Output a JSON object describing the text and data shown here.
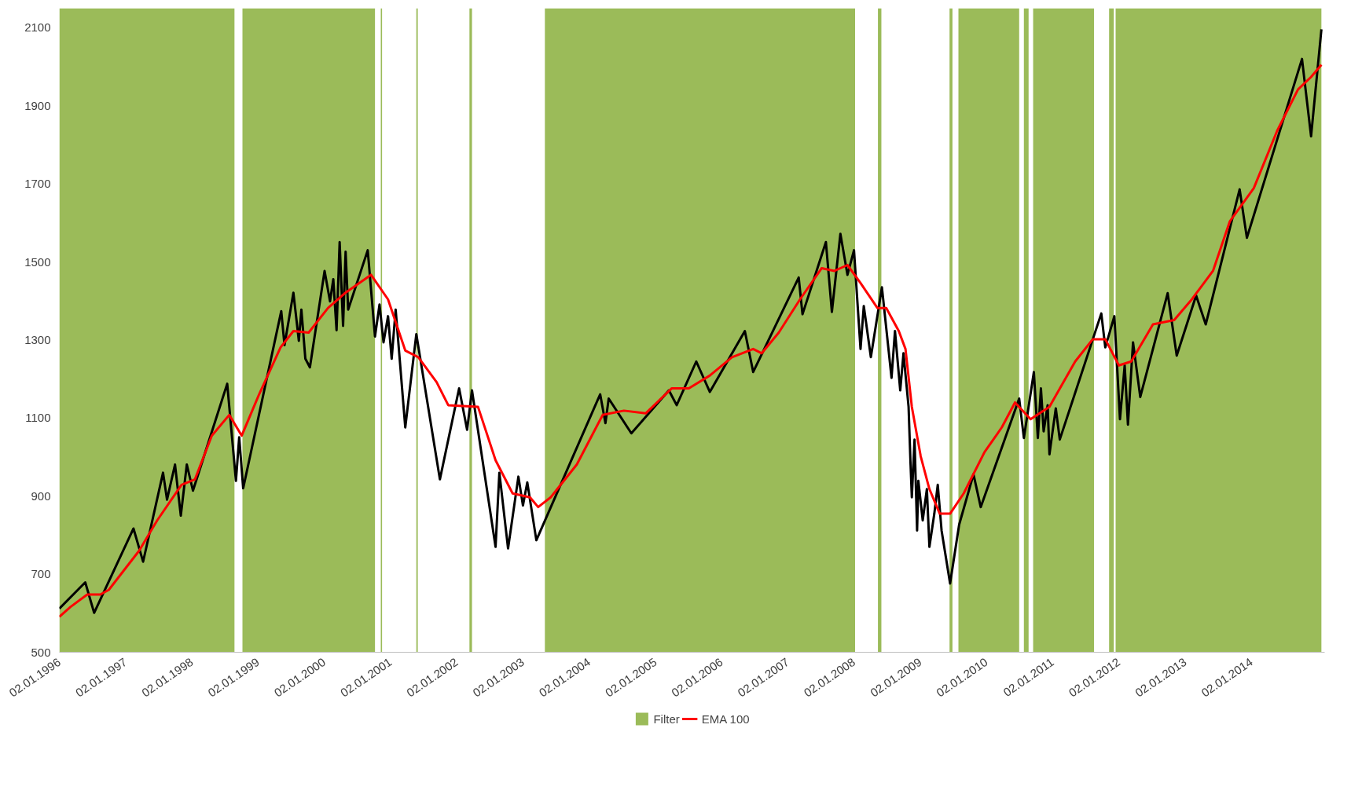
{
  "chart_data": {
    "type": "line",
    "ylim": [
      500,
      2150
    ],
    "yticks": [
      500,
      700,
      900,
      1100,
      1300,
      1500,
      1700,
      1900,
      2100
    ],
    "xlim": [
      "1996-01-02",
      "2015-02-10"
    ],
    "xticks": [
      {
        "value": "1996-01-02",
        "label": "02.01.1996"
      },
      {
        "value": "1997-01-02",
        "label": "02.01.1997"
      },
      {
        "value": "1998-01-02",
        "label": "02.01.1998"
      },
      {
        "value": "1999-01-02",
        "label": "02.01.1999"
      },
      {
        "value": "2000-01-02",
        "label": "02.01.2000"
      },
      {
        "value": "2001-01-02",
        "label": "02.01.2001"
      },
      {
        "value": "2002-01-02",
        "label": "02.01.2002"
      },
      {
        "value": "2003-01-02",
        "label": "02.01.2003"
      },
      {
        "value": "2004-01-02",
        "label": "02.01.2004"
      },
      {
        "value": "2005-01-02",
        "label": "02.01.2005"
      },
      {
        "value": "2006-01-02",
        "label": "02.01.2006"
      },
      {
        "value": "2007-01-02",
        "label": "02.01.2007"
      },
      {
        "value": "2008-01-02",
        "label": "02.01.2008"
      },
      {
        "value": "2009-01-02",
        "label": "02.01.2009"
      },
      {
        "value": "2010-01-02",
        "label": "02.01.2010"
      },
      {
        "value": "2011-01-02",
        "label": "02.01.2011"
      },
      {
        "value": "2012-01-02",
        "label": "02.01.2012"
      },
      {
        "value": "2013-01-02",
        "label": "02.01.2013"
      },
      {
        "value": "2014-01-02",
        "label": "02.01.2014"
      }
    ],
    "grid": false,
    "legend": "bottom",
    "bands": [
      {
        "axis": "x",
        "from": "1996-01-02",
        "to": "1998-08-25",
        "label": "Filter",
        "color": "#9bbb59"
      },
      {
        "axis": "x",
        "from": "1998-10-08",
        "to": "2000-10-08",
        "color": "#9bbb59"
      },
      {
        "axis": "x",
        "from": "2000-11-09",
        "to": "2000-11-16",
        "color": "#9bbb59"
      },
      {
        "axis": "x",
        "from": "2001-05-24",
        "to": "2001-06-01",
        "color": "#9bbb59"
      },
      {
        "axis": "x",
        "from": "2002-03-13",
        "to": "2002-03-27",
        "color": "#9bbb59"
      },
      {
        "axis": "x",
        "from": "2003-05-03",
        "to": "2008-01-08",
        "color": "#9bbb59"
      },
      {
        "axis": "x",
        "from": "2008-05-13",
        "to": "2008-06-01",
        "color": "#9bbb59"
      },
      {
        "axis": "x",
        "from": "2009-06-12",
        "to": "2009-06-28",
        "color": "#9bbb59"
      },
      {
        "axis": "x",
        "from": "2009-07-31",
        "to": "2010-07-01",
        "color": "#9bbb59"
      },
      {
        "axis": "x",
        "from": "2010-07-27",
        "to": "2010-08-22",
        "color": "#9bbb59"
      },
      {
        "axis": "x",
        "from": "2010-09-16",
        "to": "2011-08-18",
        "color": "#9bbb59"
      },
      {
        "axis": "x",
        "from": "2011-11-09",
        "to": "2011-12-05",
        "color": "#9bbb59"
      },
      {
        "axis": "x",
        "from": "2011-12-15",
        "to": "2015-01-23",
        "color": "#9bbb59"
      }
    ],
    "series": [
      {
        "color": "#000000",
        "x": [
          "1996-01-02",
          "1996-05-24",
          "1996-07-12",
          "1997-02-14",
          "1997-04-08",
          "1997-07-27",
          "1997-08-18",
          "1997-10-01",
          "1997-11-02",
          "1997-12-05",
          "1998-01-08",
          "1998-07-16",
          "1998-09-02",
          "1998-09-20",
          "1998-10-12",
          "1999-05-10",
          "1999-05-28",
          "1999-07-16",
          "1999-08-15",
          "1999-08-29",
          "1999-09-20",
          "1999-10-15",
          "2000-01-04",
          "2000-02-03",
          "2000-02-21",
          "2000-03-10",
          "2000-03-27",
          "2000-04-15",
          "2000-04-29",
          "2000-05-13",
          "2000-08-29",
          "2000-10-08",
          "2000-11-02",
          "2000-11-24",
          "2000-12-19",
          "2001-01-08",
          "2001-01-30",
          "2001-03-24",
          "2001-05-24",
          "2001-10-01",
          "2002-01-15",
          "2002-02-28",
          "2002-03-27",
          "2002-08-04",
          "2002-08-25",
          "2002-10-12",
          "2002-12-08",
          "2003-01-02",
          "2003-01-26",
          "2003-03-17",
          "2004-03-03",
          "2004-04-01",
          "2004-04-19",
          "2004-08-22",
          "2005-03-17",
          "2005-04-29",
          "2005-08-15",
          "2005-10-29",
          "2006-05-10",
          "2006-06-25",
          "2007-03-03",
          "2007-03-24",
          "2007-07-31",
          "2007-09-02",
          "2007-10-19",
          "2007-11-27",
          "2008-01-02",
          "2008-02-07",
          "2008-02-25",
          "2008-04-04",
          "2008-06-04",
          "2008-07-27",
          "2008-08-15",
          "2008-09-13",
          "2008-10-01",
          "2008-10-29",
          "2008-11-09",
          "2008-11-16",
          "2008-12-01",
          "2008-12-15",
          "2008-12-22",
          "2009-01-15",
          "2009-02-07",
          "2009-02-21",
          "2009-03-20",
          "2009-04-08",
          "2009-04-29",
          "2009-06-15",
          "2009-08-04",
          "2009-10-22",
          "2009-12-01",
          "2010-07-01",
          "2010-07-27",
          "2010-09-20",
          "2010-10-12",
          "2010-10-29",
          "2010-11-13",
          "2010-12-05",
          "2010-12-15",
          "2011-01-19",
          "2011-02-10",
          "2011-09-27",
          "2011-10-19",
          "2011-12-08",
          "2012-01-08",
          "2012-02-03",
          "2012-02-21",
          "2012-03-20",
          "2012-04-29",
          "2012-09-27",
          "2012-11-16",
          "2013-03-03",
          "2013-04-25",
          "2013-10-29",
          "2013-12-08",
          "2014-10-08",
          "2014-11-27",
          "2015-01-23"
        ],
        "values": [
          612,
          679,
          601,
          817,
          732,
          960,
          891,
          981,
          850,
          981,
          914,
          1188,
          939,
          1051,
          920,
          1374,
          1287,
          1421,
          1298,
          1378,
          1252,
          1230,
          1477,
          1399,
          1456,
          1325,
          1551,
          1336,
          1526,
          1378,
          1530,
          1309,
          1391,
          1294,
          1361,
          1252,
          1378,
          1076,
          1315,
          943,
          1176,
          1070,
          1171,
          770,
          960,
          766,
          950,
          876,
          935,
          787,
          1161,
          1087,
          1150,
          1061,
          1171,
          1133,
          1245,
          1167,
          1323,
          1218,
          1460,
          1366,
          1551,
          1372,
          1572,
          1467,
          1530,
          1277,
          1387,
          1256,
          1435,
          1203,
          1323,
          1171,
          1266,
          1129,
          981,
          897,
          1045,
          812,
          939,
          838,
          918,
          770,
          855,
          929,
          812,
          676,
          827,
          956,
          872,
          1150,
          1049,
          1218,
          1049,
          1176,
          1066,
          1133,
          1007,
          1125,
          1045,
          1368,
          1281,
          1361,
          1097,
          1235,
          1083,
          1294,
          1154,
          1420,
          1260,
          1414,
          1340,
          1686,
          1562,
          2020,
          1822,
          2096
        ]
      },
      {
        "name": "EMA 100",
        "color": "#ff0000",
        "x": [
          "1996-01-02",
          "1996-03-03",
          "1996-06-04",
          "1996-08-15",
          "1996-10-01",
          "1997-03-17",
          "1997-06-25",
          "1997-11-06",
          "1998-01-19",
          "1998-04-22",
          "1998-07-27",
          "1998-10-04",
          "1999-01-08",
          "1999-05-06",
          "1999-07-16",
          "1999-10-08",
          "2000-01-23",
          "2000-04-25",
          "2000-09-16",
          "2000-12-19",
          "2001-03-24",
          "2001-06-04",
          "2001-09-13",
          "2001-11-16",
          "2002-04-29",
          "2002-08-04",
          "2002-11-06",
          "2003-02-10",
          "2003-03-27",
          "2003-06-04",
          "2003-10-26",
          "2004-03-17",
          "2004-07-12",
          "2004-11-09",
          "2005-04-01",
          "2005-07-05",
          "2005-10-29",
          "2006-02-28",
          "2006-06-25",
          "2006-08-11",
          "2006-11-13",
          "2007-03-10",
          "2007-07-08",
          "2007-09-16",
          "2007-11-27",
          "2008-02-07",
          "2008-05-10",
          "2008-06-28",
          "2008-09-05",
          "2008-10-12",
          "2008-11-16",
          "2009-01-04",
          "2009-02-21",
          "2009-04-19",
          "2009-06-15",
          "2009-08-29",
          "2009-12-22",
          "2010-03-27",
          "2010-06-08",
          "2010-09-02",
          "2010-12-15",
          "2011-05-06",
          "2011-08-11",
          "2011-10-19",
          "2012-01-02",
          "2012-03-10",
          "2012-07-08",
          "2012-11-02",
          "2013-02-07",
          "2013-06-04",
          "2013-09-05",
          "2014-01-15",
          "2014-05-24",
          "2014-09-16",
          "2014-11-27",
          "2015-01-23"
        ],
        "values": [
          591,
          616,
          648,
          648,
          660,
          760,
          838,
          929,
          943,
          1055,
          1108,
          1055,
          1161,
          1281,
          1323,
          1319,
          1382,
          1420,
          1467,
          1404,
          1273,
          1256,
          1192,
          1133,
          1129,
          992,
          907,
          897,
          872,
          897,
          981,
          1108,
          1119,
          1112,
          1176,
          1176,
          1209,
          1256,
          1277,
          1266,
          1319,
          1404,
          1484,
          1477,
          1492,
          1446,
          1382,
          1382,
          1323,
          1277,
          1129,
          1002,
          918,
          855,
          855,
          907,
          1013,
          1076,
          1140,
          1097,
          1129,
          1245,
          1302,
          1302,
          1235,
          1245,
          1340,
          1351,
          1404,
          1477,
          1604,
          1689,
          1836,
          1942,
          1974,
          2005
        ]
      }
    ]
  }
}
